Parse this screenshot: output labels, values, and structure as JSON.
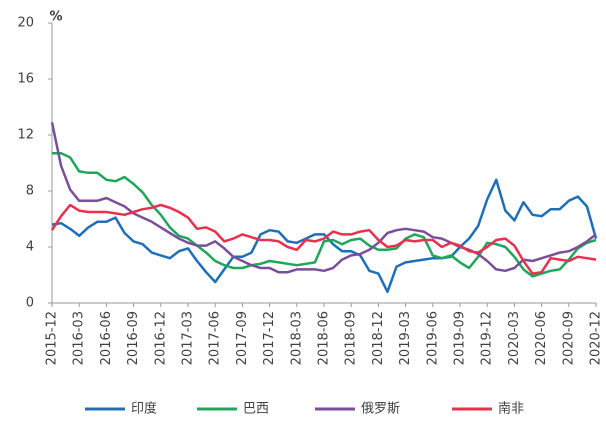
{
  "chart_data": {
    "type": "line",
    "unit": "%",
    "categories": [
      "2015-12",
      null,
      null,
      "2016-03",
      null,
      null,
      "2016-06",
      null,
      null,
      "2016-09",
      null,
      null,
      "2016-12",
      null,
      null,
      "2017-03",
      null,
      null,
      "2017-06",
      null,
      null,
      "2017-09",
      null,
      null,
      "2017-12",
      null,
      null,
      "2018-03",
      null,
      null,
      "2018-06",
      null,
      null,
      "2018-09",
      null,
      null,
      "2018-12",
      null,
      null,
      "2019-03",
      null,
      null,
      "2019-06",
      null,
      null,
      "2019-09",
      null,
      null,
      "2019-12",
      null,
      null,
      "2020-03",
      null,
      null,
      "2020-06",
      null,
      null,
      "2020-09",
      null,
      null,
      "2020-12"
    ],
    "series": [
      {
        "name": "印度",
        "color": "#1f6fb8",
        "values": [
          5.6,
          5.7,
          5.3,
          4.8,
          5.4,
          5.8,
          5.8,
          6.1,
          5.0,
          4.4,
          4.2,
          3.6,
          3.4,
          3.2,
          3.7,
          3.9,
          3.0,
          2.2,
          1.5,
          2.4,
          3.3,
          3.3,
          3.6,
          4.9,
          5.2,
          5.1,
          4.4,
          4.3,
          4.6,
          4.9,
          4.9,
          4.2,
          3.7,
          3.7,
          3.4,
          2.3,
          2.1,
          0.8,
          2.6,
          2.9,
          3.0,
          3.1,
          3.2,
          3.2,
          3.3,
          4.0,
          4.6,
          5.5,
          7.4,
          8.8,
          6.6,
          5.9,
          7.2,
          6.3,
          6.2,
          6.7,
          6.7,
          7.3,
          7.6,
          6.9,
          4.6
        ]
      },
      {
        "name": "巴西",
        "color": "#1fa65a",
        "values": [
          10.7,
          10.7,
          10.4,
          9.4,
          9.3,
          9.3,
          8.8,
          8.7,
          9.0,
          8.5,
          7.9,
          7.0,
          6.3,
          5.4,
          4.8,
          4.6,
          4.1,
          3.6,
          3.0,
          2.7,
          2.5,
          2.5,
          2.7,
          2.8,
          3.0,
          2.9,
          2.8,
          2.7,
          2.8,
          2.9,
          4.4,
          4.5,
          4.2,
          4.5,
          4.6,
          4.1,
          3.8,
          3.8,
          3.9,
          4.6,
          4.9,
          4.7,
          3.4,
          3.2,
          3.4,
          2.9,
          2.5,
          3.3,
          4.3,
          4.2,
          4.0,
          3.3,
          2.4,
          1.9,
          2.1,
          2.3,
          2.4,
          3.1,
          3.9,
          4.3,
          4.5
        ]
      },
      {
        "name": "俄罗斯",
        "color": "#7a4f9a",
        "values": [
          12.9,
          9.8,
          8.1,
          7.3,
          7.3,
          7.3,
          7.5,
          7.2,
          6.9,
          6.4,
          6.1,
          5.8,
          5.4,
          5.0,
          4.6,
          4.3,
          4.1,
          4.1,
          4.4,
          3.9,
          3.3,
          3.0,
          2.7,
          2.5,
          2.5,
          2.2,
          2.2,
          2.4,
          2.4,
          2.4,
          2.3,
          2.5,
          3.1,
          3.4,
          3.5,
          3.8,
          4.3,
          5.0,
          5.2,
          5.3,
          5.2,
          5.1,
          4.7,
          4.6,
          4.3,
          4.0,
          3.8,
          3.5,
          3.0,
          2.4,
          2.3,
          2.5,
          3.1,
          3.0,
          3.2,
          3.4,
          3.6,
          3.7,
          4.0,
          4.4,
          4.9
        ]
      },
      {
        "name": "南非",
        "color": "#e8304f",
        "values": [
          5.2,
          6.2,
          7.0,
          6.6,
          6.5,
          6.5,
          6.5,
          6.4,
          6.3,
          6.5,
          6.7,
          6.8,
          7.0,
          6.8,
          6.5,
          6.1,
          5.3,
          5.4,
          5.1,
          4.4,
          4.6,
          4.9,
          4.7,
          4.5,
          4.5,
          4.4,
          4.0,
          3.8,
          4.5,
          4.4,
          4.6,
          5.1,
          4.9,
          4.9,
          5.1,
          5.2,
          4.5,
          4.0,
          4.1,
          4.5,
          4.4,
          4.5,
          4.5,
          4.0,
          4.3,
          4.1,
          3.7,
          3.6,
          4.0,
          4.5,
          4.6,
          4.1,
          3.0,
          2.1,
          2.2,
          3.2,
          3.1,
          3.0,
          3.3,
          3.2,
          3.1
        ]
      }
    ],
    "ylim": [
      0,
      20
    ],
    "yticks": [
      0,
      4,
      8,
      12,
      16,
      20
    ],
    "legend": "bottom"
  }
}
